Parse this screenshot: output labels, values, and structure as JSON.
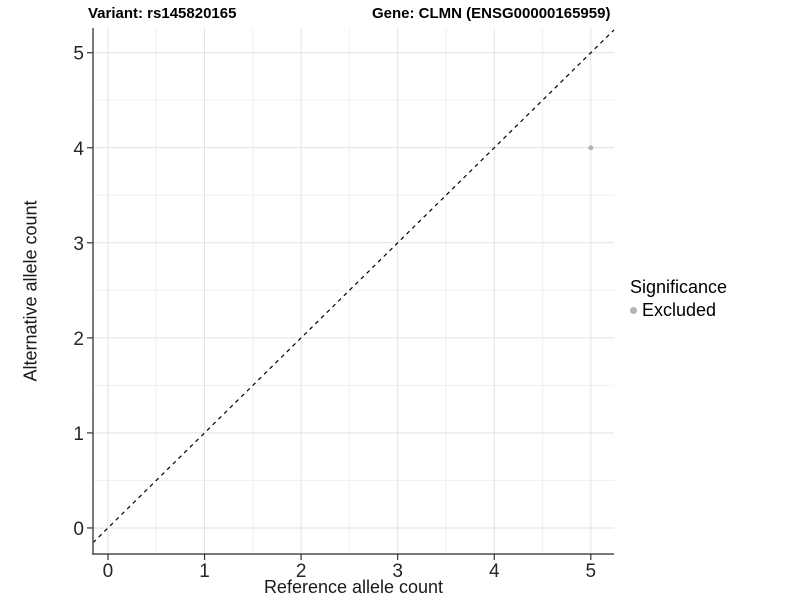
{
  "chart_data": {
    "type": "scatter",
    "title_left": "Variant: rs145820165",
    "title_right": "Gene: CLMN (ENSG00000165959)",
    "xlabel": "Reference allele count",
    "ylabel": "Alternative allele count",
    "x_ticks": [
      0,
      1,
      2,
      3,
      4,
      5
    ],
    "y_ticks": [
      0,
      1,
      2,
      3,
      4,
      5
    ],
    "xlim": [
      -0.155,
      5.24
    ],
    "ylim": [
      -0.274,
      5.26
    ],
    "grid": {
      "major": true,
      "minor": true,
      "minor_step": 0.5
    },
    "series": [
      {
        "name": "Excluded",
        "color": "#b3b3b3",
        "point_radius": 2.5,
        "points": [
          [
            5,
            4
          ]
        ]
      }
    ],
    "reference_line": {
      "slope": 1,
      "intercept": 0,
      "style": "dashed",
      "color": "#000000"
    },
    "legend": {
      "position": "right",
      "title": "Significance",
      "entries": [
        {
          "label": "Excluded",
          "color": "#b3b3b3"
        }
      ]
    }
  },
  "colors": {
    "background": "#ffffff",
    "grid_major": "#e2e2e2",
    "grid_minor": "#f0f0f0",
    "axis_line": "#4d4d4d",
    "tick_mark": "#333333",
    "tick_text": "#262626"
  }
}
